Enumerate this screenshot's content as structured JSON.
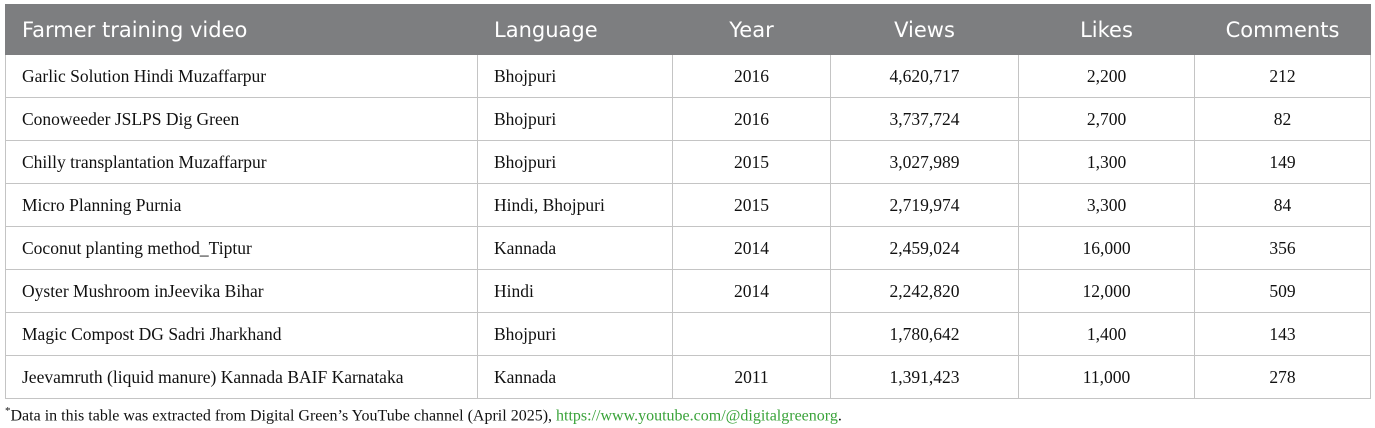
{
  "table": {
    "columns": [
      "Farmer training video",
      "Language",
      "Year",
      "Views",
      "Likes",
      "Comments"
    ],
    "rows": [
      [
        "Garlic Solution Hindi Muzaffarpur",
        "Bhojpuri",
        "2016",
        "4,620,717",
        "2,200",
        "212"
      ],
      [
        "Conoweeder JSLPS Dig Green",
        "Bhojpuri",
        "2016",
        "3,737,724",
        "2,700",
        "82"
      ],
      [
        "Chilly transplantation Muzaffarpur",
        "Bhojpuri",
        "2015",
        "3,027,989",
        "1,300",
        "149"
      ],
      [
        "Micro Planning Purnia",
        "Hindi, Bhojpuri",
        "2015",
        "2,719,974",
        "3,300",
        "84"
      ],
      [
        "Coconut planting method_Tiptur",
        "Kannada",
        "2014",
        "2,459,024",
        "16,000",
        "356"
      ],
      [
        "Oyster Mushroom inJeevika Bihar",
        "Hindi",
        "2014",
        "2,242,820",
        "12,000",
        "509"
      ],
      [
        "Magic Compost DG Sadri Jharkhand",
        "Bhojpuri",
        null,
        "1,780,642",
        "1,400",
        "143"
      ],
      [
        "Jeevamruth (liquid manure) Kannada BAIF Karnataka",
        "Kannada",
        "2011",
        "1,391,423",
        "11,000",
        "278"
      ]
    ]
  },
  "footnote": {
    "marker": "*",
    "text": "Data in this table was extracted from Digital Green’s YouTube channel (April 2025), ",
    "link": "https://www.youtube.com/@digitalgreenorg",
    "end": "."
  }
}
